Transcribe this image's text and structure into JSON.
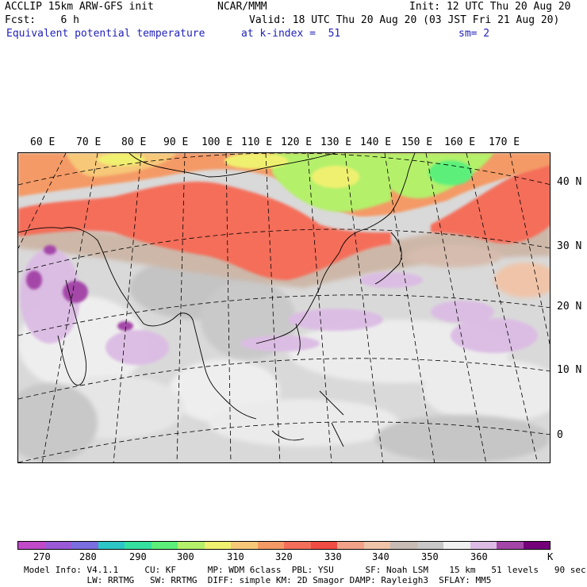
{
  "header": {
    "left_line1": "ACCLIP 15km ARW-GFS init",
    "left_line2": "Fcst:    6 h",
    "center_line1": "NCAR/MMM",
    "init": "Init: 12 UTC Thu 20 Aug 20",
    "valid": "Valid: 18 UTC Thu 20 Aug 20 (03 JST Fri 21 Aug 20)",
    "field_name": "Equivalent potential temperature",
    "level": "at k-index =  51",
    "smoothing": "sm= 2"
  },
  "map": {
    "lon_labels": [
      "60 E",
      "70 E",
      "80 E",
      "90 E",
      "100 E",
      "110 E",
      "120 E",
      "130 E",
      "140 E",
      "150 E",
      "160 E",
      "170 E"
    ],
    "lat_labels": [
      "40 N",
      "30 N",
      "20 N",
      "10 N",
      "0"
    ]
  },
  "colorbar": {
    "unit": "K",
    "tick_labels": [
      "270",
      "280",
      "290",
      "300",
      "310",
      "320",
      "330",
      "340",
      "350",
      "360"
    ],
    "colors": [
      "#c04ac8",
      "#9a5ad8",
      "#7a6ee0",
      "#2cc6c6",
      "#36e0a0",
      "#5cf07a",
      "#b4f06a",
      "#f0f070",
      "#f6c878",
      "#f49a66",
      "#f46e5a",
      "#f04c44",
      "#f3a28a",
      "#f0c4a8",
      "#c8bcb4",
      "#c8c8c8",
      "#f0f0f0",
      "#dcbce4",
      "#a446a8",
      "#74007a"
    ]
  },
  "footer": {
    "line1": "Model Info: V4.1.1     CU: KF      MP: WDM 6class  PBL: YSU      SF: Noah LSM    15 km   51 levels   90 sec",
    "line2": "            LW: RRTMG   SW: RRTMG  DIFF: simple KM: 2D Smagor DAMP: Rayleigh3  SFLAY: MM5"
  }
}
